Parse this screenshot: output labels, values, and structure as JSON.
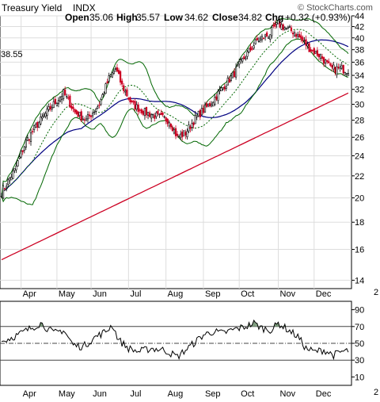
{
  "chart_data": {
    "type": "candlestick",
    "title": "Treasury Yield",
    "subtitle": "INDX",
    "watermark": "© StockCharts.com",
    "ohlc_header": {
      "open_label": "Open",
      "open": "35.06",
      "high_label": "High",
      "high": "35.57",
      "low_label": "Low",
      "low": "34.62",
      "close_label": "Close",
      "close": "34.82",
      "chg_label": "Chg",
      "chg": "+0.32 (+0.93%)"
    },
    "left_label": "38.55",
    "price_scale": "log",
    "price_ylim": [
      13.5,
      44
    ],
    "price_ticks": [
      "14",
      "16",
      "18",
      "20",
      "22",
      "24",
      "26",
      "28",
      "30",
      "32",
      "34",
      "36",
      "38",
      "40",
      "42",
      "44"
    ],
    "months": [
      "Apr",
      "May",
      "Jun",
      "Jul",
      "Aug",
      "Sep",
      "Oct",
      "Nov",
      "Dec"
    ],
    "right_edge_label": "2",
    "lower_right_edge_label": "2",
    "price_anchors": [
      [
        0,
        20.5
      ],
      [
        8,
        22.5
      ],
      [
        15,
        25.5
      ],
      [
        22,
        27.5
      ],
      [
        30,
        29.5
      ],
      [
        38,
        31.5
      ],
      [
        45,
        29.0
      ],
      [
        52,
        28.0
      ],
      [
        60,
        30.0
      ],
      [
        66,
        33.5
      ],
      [
        70,
        35.0
      ],
      [
        74,
        32.5
      ],
      [
        80,
        30.0
      ],
      [
        88,
        29.0
      ],
      [
        95,
        28.5
      ],
      [
        103,
        28.0
      ],
      [
        108,
        26.0
      ],
      [
        113,
        26.5
      ],
      [
        120,
        28.5
      ],
      [
        128,
        30.0
      ],
      [
        135,
        32.0
      ],
      [
        142,
        34.0
      ],
      [
        150,
        37.0
      ],
      [
        157,
        39.5
      ],
      [
        164,
        40.5
      ],
      [
        170,
        42.5
      ],
      [
        176,
        41.5
      ],
      [
        180,
        41.0
      ],
      [
        185,
        39.5
      ],
      [
        190,
        38.0
      ],
      [
        196,
        37.0
      ],
      [
        202,
        35.0
      ],
      [
        208,
        35.0
      ],
      [
        213,
        34.8
      ]
    ],
    "indicators": [
      {
        "name": "",
        "color": "#000080"
      },
      {
        "name": "",
        "color": "#cc0022"
      },
      {
        "name": "",
        "color": "#006600"
      },
      {
        "name": "",
        "color": "#006600"
      }
    ],
    "rsi": {
      "ylim": [
        0,
        100
      ],
      "ticks": [
        "10",
        "30",
        "50",
        "70",
        "90"
      ],
      "levels": [
        30,
        50,
        70
      ],
      "anchors": [
        [
          0,
          52
        ],
        [
          10,
          60
        ],
        [
          18,
          68
        ],
        [
          24,
          74
        ],
        [
          32,
          62
        ],
        [
          38,
          66
        ],
        [
          44,
          48
        ],
        [
          50,
          46
        ],
        [
          58,
          58
        ],
        [
          64,
          64
        ],
        [
          68,
          72
        ],
        [
          72,
          54
        ],
        [
          78,
          44
        ],
        [
          84,
          40
        ],
        [
          92,
          44
        ],
        [
          100,
          42
        ],
        [
          108,
          34
        ],
        [
          113,
          42
        ],
        [
          118,
          50
        ],
        [
          124,
          60
        ],
        [
          130,
          64
        ],
        [
          136,
          62
        ],
        [
          142,
          66
        ],
        [
          150,
          70
        ],
        [
          155,
          74
        ],
        [
          160,
          68
        ],
        [
          166,
          66
        ],
        [
          170,
          74
        ],
        [
          176,
          66
        ],
        [
          182,
          58
        ],
        [
          187,
          44
        ],
        [
          192,
          40
        ],
        [
          198,
          42
        ],
        [
          204,
          36
        ],
        [
          209,
          40
        ],
        [
          213,
          41
        ]
      ]
    }
  }
}
